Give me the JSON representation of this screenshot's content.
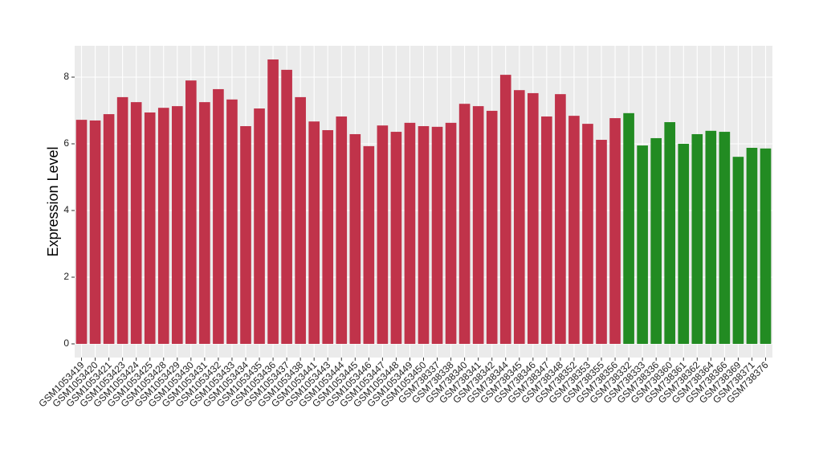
{
  "chart_data": {
    "type": "bar",
    "y_label": "Expression Level",
    "categories": [
      "GSM1053419",
      "GSM1053420",
      "GSM1053421",
      "GSM1053423",
      "GSM1053424",
      "GSM1053425",
      "GSM1053428",
      "GSM1053429",
      "GSM1053430",
      "GSM1053431",
      "GSM1053432",
      "GSM1053433",
      "GSM1053434",
      "GSM1053435",
      "GSM1053436",
      "GSM1053437",
      "GSM1053438",
      "GSM1053441",
      "GSM1053443",
      "GSM1053444",
      "GSM1053445",
      "GSM1053446",
      "GSM1053447",
      "GSM1053448",
      "GSM1053449",
      "GSM1053450",
      "GSM738337",
      "GSM738338",
      "GSM738340",
      "GSM738341",
      "GSM738342",
      "GSM738344",
      "GSM738345",
      "GSM738346",
      "GSM738347",
      "GSM738348",
      "GSM738352",
      "GSM738353",
      "GSM738355",
      "GSM738356",
      "GSM738332",
      "GSM738333",
      "GSM738336",
      "GSM738360",
      "GSM738361",
      "GSM738362",
      "GSM738364",
      "GSM738366",
      "GSM738369",
      "GSM738371",
      "GSM738376"
    ],
    "values": [
      6.72,
      6.7,
      6.89,
      7.4,
      7.25,
      6.94,
      7.08,
      7.13,
      7.9,
      7.25,
      7.64,
      7.33,
      6.53,
      7.06,
      8.53,
      8.22,
      7.4,
      6.67,
      6.41,
      6.82,
      6.29,
      5.93,
      6.55,
      6.36,
      6.63,
      6.53,
      6.51,
      6.63,
      7.2,
      7.13,
      6.99,
      8.07,
      7.61,
      7.52,
      6.82,
      7.49,
      6.84,
      6.6,
      6.12,
      6.77,
      6.92,
      5.95,
      6.17,
      6.65,
      6.0,
      6.29,
      6.39,
      6.36,
      5.61,
      5.88,
      5.86
    ],
    "colors": [
      "#c0334a",
      "#c0334a",
      "#c0334a",
      "#c0334a",
      "#c0334a",
      "#c0334a",
      "#c0334a",
      "#c0334a",
      "#c0334a",
      "#c0334a",
      "#c0334a",
      "#c0334a",
      "#c0334a",
      "#c0334a",
      "#c0334a",
      "#c0334a",
      "#c0334a",
      "#c0334a",
      "#c0334a",
      "#c0334a",
      "#c0334a",
      "#c0334a",
      "#c0334a",
      "#c0334a",
      "#c0334a",
      "#c0334a",
      "#c0334a",
      "#c0334a",
      "#c0334a",
      "#c0334a",
      "#c0334a",
      "#c0334a",
      "#c0334a",
      "#c0334a",
      "#c0334a",
      "#c0334a",
      "#c0334a",
      "#c0334a",
      "#c0334a",
      "#c0334a",
      "#228b22",
      "#228b22",
      "#228b22",
      "#228b22",
      "#228b22",
      "#228b22",
      "#228b22",
      "#228b22",
      "#228b22",
      "#228b22",
      "#228b22"
    ],
    "ylim": [
      -0.41,
      8.94
    ],
    "yticks": [
      0,
      2,
      4,
      6,
      8
    ],
    "grid": true
  }
}
